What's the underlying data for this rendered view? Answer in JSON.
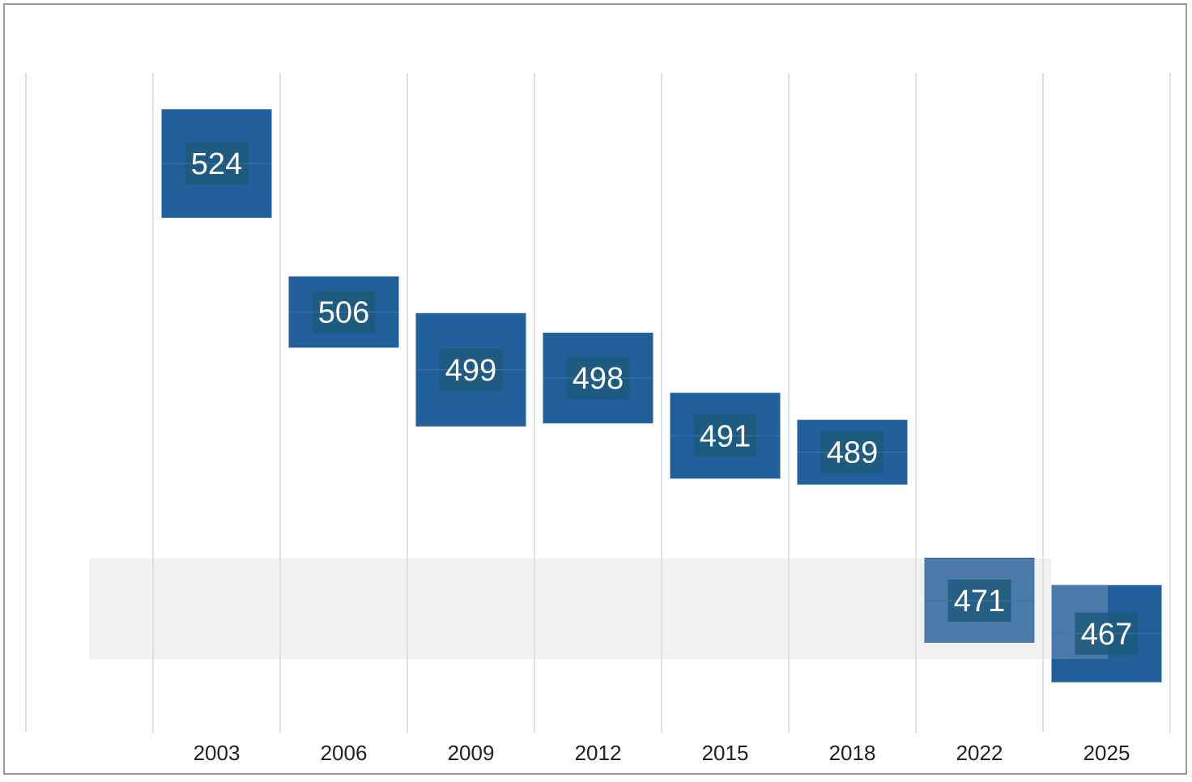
{
  "colors": {
    "bar": "#235f9a",
    "bar_light": "#4a7aaa",
    "label_box": "#1e5a7d",
    "band": "#f1f1f1",
    "grid": "#d9d9d9",
    "frame": "#999999"
  },
  "chart_data": {
    "type": "bar",
    "categories": [
      "2003",
      "2006",
      "2009",
      "2012",
      "2015",
      "2018",
      "2022",
      "2025"
    ],
    "values": [
      524,
      506,
      499,
      498,
      491,
      489,
      471,
      467
    ],
    "value_labels": [
      "524",
      "506",
      "499",
      "498",
      "491",
      "489",
      "471",
      "467"
    ],
    "title": "",
    "xlabel": "",
    "ylabel": "",
    "ylim": [
      455,
      535
    ],
    "highlight_band": [
      464,
      476
    ],
    "grid": true,
    "legend": false
  }
}
